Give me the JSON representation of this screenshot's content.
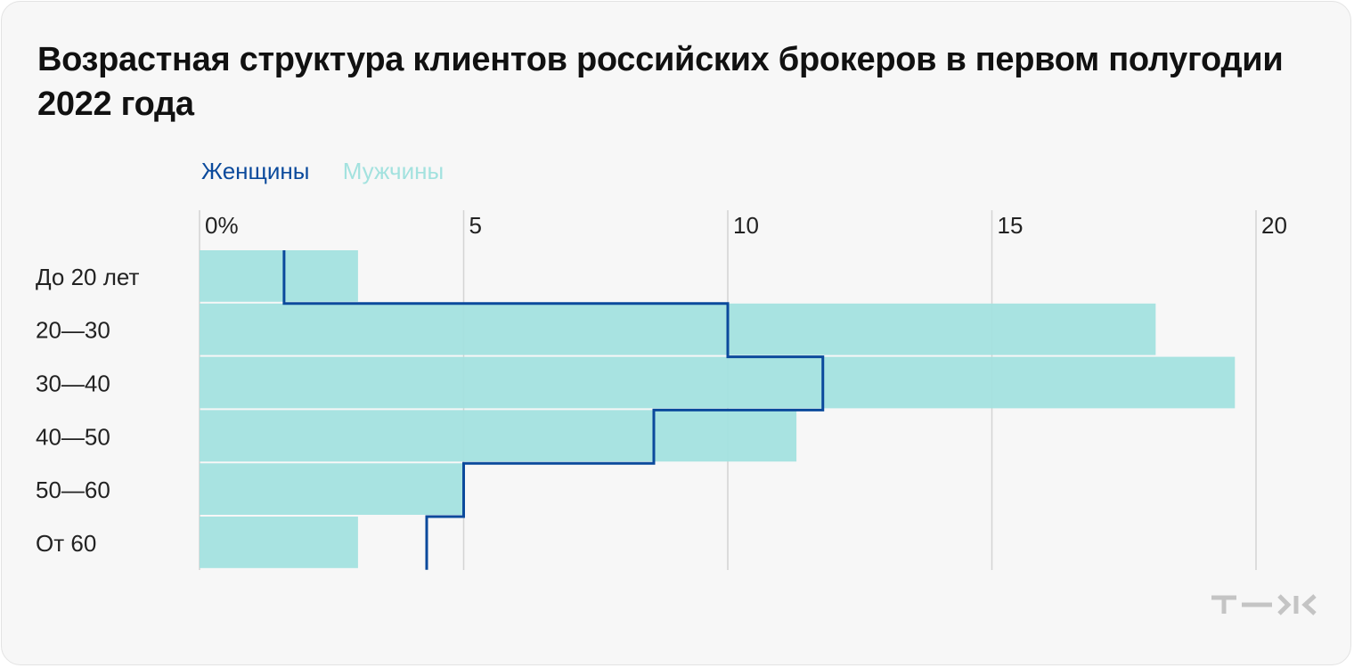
{
  "title": "Возрастная структура клиентов российских брокеров в первом полугодии 2022 года",
  "logo": "т—ж",
  "colors": {
    "women": "#0b4a9c",
    "men": "#a3e2df",
    "grid": "#d4d4d4",
    "text": "#222222"
  },
  "chart_data": {
    "type": "bar",
    "title": "Возрастная структура клиентов российских брокеров в первом полугодии 2022 года",
    "categories": [
      "До 20 лет",
      "20—30",
      "30—40",
      "40—50",
      "50—60",
      "От 60"
    ],
    "series": [
      {
        "name": "Женщины",
        "style": "step-line",
        "values": [
          1.6,
          10.0,
          11.8,
          8.6,
          5.0,
          4.3
        ]
      },
      {
        "name": "Мужчины",
        "style": "bar",
        "values": [
          3.0,
          18.1,
          19.6,
          11.3,
          5.0,
          3.0
        ]
      }
    ],
    "x_ticks": [
      0,
      5,
      10,
      15,
      20
    ],
    "x_tick_labels": [
      "0%",
      "5",
      "10",
      "15",
      "20"
    ],
    "xlim": [
      0,
      20
    ],
    "grid": true,
    "legend_position": "top-left",
    "orientation": "horizontal"
  }
}
